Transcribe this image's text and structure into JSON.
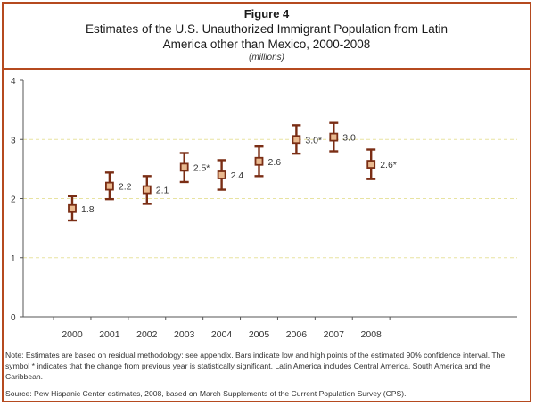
{
  "figure_label": "Figure 4",
  "title": "Estimates of the U.S. Unauthorized Immigrant Population from Latin America other than Mexico, 2000-2008",
  "subtitle": "(millions)",
  "note": "Note: Estimates are based on residual methodology: see appendix. Bars indicate low and high points of the estimated 90% confidence interval. The symbol * indicates that the change from previous year is statistically significant. Latin America includes Central America, South America and the Caribbean.",
  "source": "Source: Pew Hispanic Center estimates, 2008, based on March Supplements of the Current Population Survey (CPS).",
  "colors": {
    "border": "#b54a1f",
    "marker": "#7a2d14",
    "marker_fill": "#e9b98f",
    "grid": "#e8e3a0"
  },
  "chart_data": {
    "type": "scatter",
    "categories": [
      "2000",
      "2001",
      "2002",
      "2003",
      "2004",
      "2005",
      "2006",
      "2007",
      "2008"
    ],
    "values": [
      1.8,
      2.2,
      2.1,
      2.5,
      2.4,
      2.6,
      3.0,
      3.0,
      2.6
    ],
    "plotted": [
      1.83,
      2.21,
      2.15,
      2.53,
      2.4,
      2.63,
      3.0,
      3.04,
      2.58
    ],
    "low": [
      1.63,
      1.99,
      1.91,
      2.28,
      2.15,
      2.38,
      2.76,
      2.8,
      2.33
    ],
    "high": [
      2.04,
      2.44,
      2.38,
      2.77,
      2.65,
      2.88,
      3.24,
      3.28,
      2.83
    ],
    "data_labels": [
      "1.8",
      "2.2",
      "2.1",
      "2.5*",
      "2.4",
      "2.6",
      "3.0*",
      "3.0",
      "2.6*"
    ],
    "y_ticks": [
      "0",
      "1",
      "2",
      "3",
      "4"
    ],
    "ylim": [
      0,
      4
    ],
    "grid": true,
    "error_bars": "90% confidence interval"
  }
}
